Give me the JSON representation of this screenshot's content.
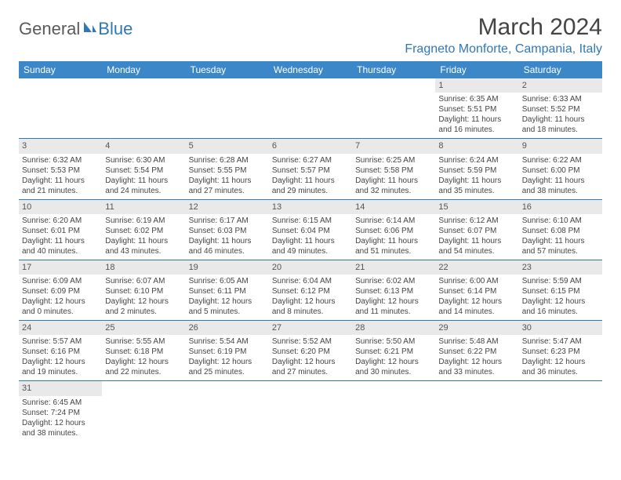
{
  "logo": {
    "general": "General",
    "blue": "Blue"
  },
  "title": "March 2024",
  "location": "Fragneto Monforte, Campania, Italy",
  "colors": {
    "header_bg": "#3b87c8",
    "accent": "#2f78b8",
    "daynum_bg": "#e9e9e9",
    "text": "#444444"
  },
  "weekdays": [
    "Sunday",
    "Monday",
    "Tuesday",
    "Wednesday",
    "Thursday",
    "Friday",
    "Saturday"
  ],
  "weeks": [
    [
      null,
      null,
      null,
      null,
      null,
      {
        "n": "1",
        "sr": "Sunrise: 6:35 AM",
        "ss": "Sunset: 5:51 PM",
        "d1": "Daylight: 11 hours",
        "d2": "and 16 minutes."
      },
      {
        "n": "2",
        "sr": "Sunrise: 6:33 AM",
        "ss": "Sunset: 5:52 PM",
        "d1": "Daylight: 11 hours",
        "d2": "and 18 minutes."
      }
    ],
    [
      {
        "n": "3",
        "sr": "Sunrise: 6:32 AM",
        "ss": "Sunset: 5:53 PM",
        "d1": "Daylight: 11 hours",
        "d2": "and 21 minutes."
      },
      {
        "n": "4",
        "sr": "Sunrise: 6:30 AM",
        "ss": "Sunset: 5:54 PM",
        "d1": "Daylight: 11 hours",
        "d2": "and 24 minutes."
      },
      {
        "n": "5",
        "sr": "Sunrise: 6:28 AM",
        "ss": "Sunset: 5:55 PM",
        "d1": "Daylight: 11 hours",
        "d2": "and 27 minutes."
      },
      {
        "n": "6",
        "sr": "Sunrise: 6:27 AM",
        "ss": "Sunset: 5:57 PM",
        "d1": "Daylight: 11 hours",
        "d2": "and 29 minutes."
      },
      {
        "n": "7",
        "sr": "Sunrise: 6:25 AM",
        "ss": "Sunset: 5:58 PM",
        "d1": "Daylight: 11 hours",
        "d2": "and 32 minutes."
      },
      {
        "n": "8",
        "sr": "Sunrise: 6:24 AM",
        "ss": "Sunset: 5:59 PM",
        "d1": "Daylight: 11 hours",
        "d2": "and 35 minutes."
      },
      {
        "n": "9",
        "sr": "Sunrise: 6:22 AM",
        "ss": "Sunset: 6:00 PM",
        "d1": "Daylight: 11 hours",
        "d2": "and 38 minutes."
      }
    ],
    [
      {
        "n": "10",
        "sr": "Sunrise: 6:20 AM",
        "ss": "Sunset: 6:01 PM",
        "d1": "Daylight: 11 hours",
        "d2": "and 40 minutes."
      },
      {
        "n": "11",
        "sr": "Sunrise: 6:19 AM",
        "ss": "Sunset: 6:02 PM",
        "d1": "Daylight: 11 hours",
        "d2": "and 43 minutes."
      },
      {
        "n": "12",
        "sr": "Sunrise: 6:17 AM",
        "ss": "Sunset: 6:03 PM",
        "d1": "Daylight: 11 hours",
        "d2": "and 46 minutes."
      },
      {
        "n": "13",
        "sr": "Sunrise: 6:15 AM",
        "ss": "Sunset: 6:04 PM",
        "d1": "Daylight: 11 hours",
        "d2": "and 49 minutes."
      },
      {
        "n": "14",
        "sr": "Sunrise: 6:14 AM",
        "ss": "Sunset: 6:06 PM",
        "d1": "Daylight: 11 hours",
        "d2": "and 51 minutes."
      },
      {
        "n": "15",
        "sr": "Sunrise: 6:12 AM",
        "ss": "Sunset: 6:07 PM",
        "d1": "Daylight: 11 hours",
        "d2": "and 54 minutes."
      },
      {
        "n": "16",
        "sr": "Sunrise: 6:10 AM",
        "ss": "Sunset: 6:08 PM",
        "d1": "Daylight: 11 hours",
        "d2": "and 57 minutes."
      }
    ],
    [
      {
        "n": "17",
        "sr": "Sunrise: 6:09 AM",
        "ss": "Sunset: 6:09 PM",
        "d1": "Daylight: 12 hours",
        "d2": "and 0 minutes."
      },
      {
        "n": "18",
        "sr": "Sunrise: 6:07 AM",
        "ss": "Sunset: 6:10 PM",
        "d1": "Daylight: 12 hours",
        "d2": "and 2 minutes."
      },
      {
        "n": "19",
        "sr": "Sunrise: 6:05 AM",
        "ss": "Sunset: 6:11 PM",
        "d1": "Daylight: 12 hours",
        "d2": "and 5 minutes."
      },
      {
        "n": "20",
        "sr": "Sunrise: 6:04 AM",
        "ss": "Sunset: 6:12 PM",
        "d1": "Daylight: 12 hours",
        "d2": "and 8 minutes."
      },
      {
        "n": "21",
        "sr": "Sunrise: 6:02 AM",
        "ss": "Sunset: 6:13 PM",
        "d1": "Daylight: 12 hours",
        "d2": "and 11 minutes."
      },
      {
        "n": "22",
        "sr": "Sunrise: 6:00 AM",
        "ss": "Sunset: 6:14 PM",
        "d1": "Daylight: 12 hours",
        "d2": "and 14 minutes."
      },
      {
        "n": "23",
        "sr": "Sunrise: 5:59 AM",
        "ss": "Sunset: 6:15 PM",
        "d1": "Daylight: 12 hours",
        "d2": "and 16 minutes."
      }
    ],
    [
      {
        "n": "24",
        "sr": "Sunrise: 5:57 AM",
        "ss": "Sunset: 6:16 PM",
        "d1": "Daylight: 12 hours",
        "d2": "and 19 minutes."
      },
      {
        "n": "25",
        "sr": "Sunrise: 5:55 AM",
        "ss": "Sunset: 6:18 PM",
        "d1": "Daylight: 12 hours",
        "d2": "and 22 minutes."
      },
      {
        "n": "26",
        "sr": "Sunrise: 5:54 AM",
        "ss": "Sunset: 6:19 PM",
        "d1": "Daylight: 12 hours",
        "d2": "and 25 minutes."
      },
      {
        "n": "27",
        "sr": "Sunrise: 5:52 AM",
        "ss": "Sunset: 6:20 PM",
        "d1": "Daylight: 12 hours",
        "d2": "and 27 minutes."
      },
      {
        "n": "28",
        "sr": "Sunrise: 5:50 AM",
        "ss": "Sunset: 6:21 PM",
        "d1": "Daylight: 12 hours",
        "d2": "and 30 minutes."
      },
      {
        "n": "29",
        "sr": "Sunrise: 5:48 AM",
        "ss": "Sunset: 6:22 PM",
        "d1": "Daylight: 12 hours",
        "d2": "and 33 minutes."
      },
      {
        "n": "30",
        "sr": "Sunrise: 5:47 AM",
        "ss": "Sunset: 6:23 PM",
        "d1": "Daylight: 12 hours",
        "d2": "and 36 minutes."
      }
    ],
    [
      {
        "n": "31",
        "sr": "Sunrise: 6:45 AM",
        "ss": "Sunset: 7:24 PM",
        "d1": "Daylight: 12 hours",
        "d2": "and 38 minutes."
      },
      null,
      null,
      null,
      null,
      null,
      null
    ]
  ]
}
